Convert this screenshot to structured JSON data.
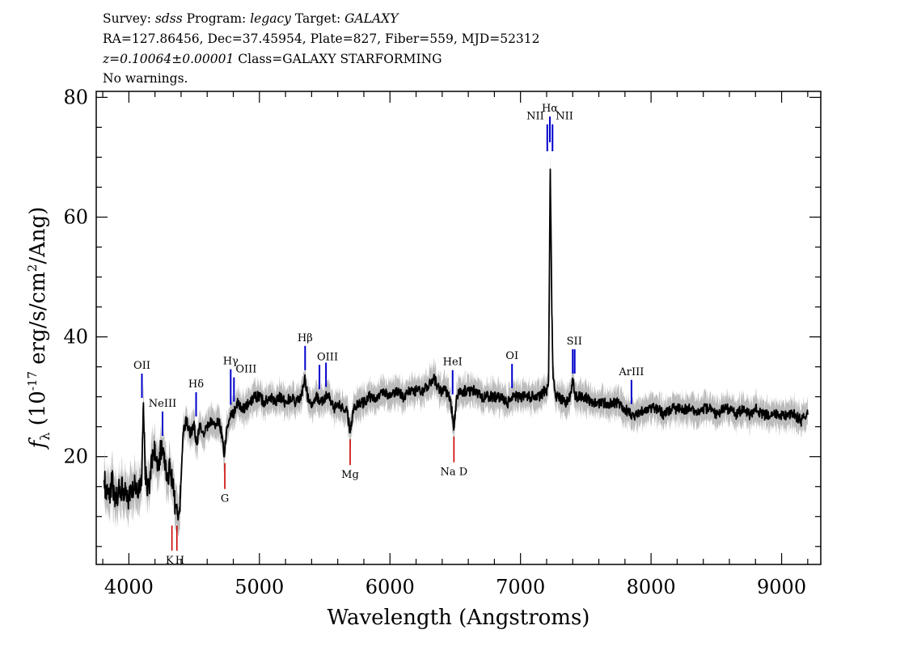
{
  "header": {
    "line1": [
      {
        "t": "Survey: ",
        "i": false
      },
      {
        "t": "sdss",
        "i": true
      },
      {
        "t": " Program: ",
        "i": false
      },
      {
        "t": "legacy",
        "i": true
      },
      {
        "t": " Target: ",
        "i": false
      },
      {
        "t": "GALAXY",
        "i": true
      }
    ],
    "line2": [
      {
        "t": "RA=127.86456, Dec=37.45954, Plate=827, Fiber=559, MJD=52312",
        "i": false
      }
    ],
    "line3": [
      {
        "t": "z=0.10064±0.00001",
        "i": true
      },
      {
        "t": " Class=GALAXY STARFORMING",
        "i": false
      }
    ],
    "line4": [
      {
        "t": "No warnings.",
        "i": false
      }
    ]
  },
  "chart_data": {
    "type": "line",
    "xlabel": "Wavelength (Angstroms)",
    "ylabel": "f_λ (10^-17 erg/s/cm^2/Ang)",
    "xlim": [
      3750,
      9300
    ],
    "ylim": [
      2,
      81
    ],
    "x_ticks": [
      4000,
      5000,
      6000,
      7000,
      8000,
      9000
    ],
    "y_ticks": [
      20,
      40,
      60,
      80
    ],
    "grid": false,
    "series": [
      {
        "color": "#000000",
        "error_band_color": "#bbbbbb",
        "points": [
          [
            3810,
            16
          ],
          [
            3830,
            14
          ],
          [
            3850,
            13
          ],
          [
            3870,
            16
          ],
          [
            3890,
            14
          ],
          [
            3910,
            13
          ],
          [
            3930,
            15
          ],
          [
            3960,
            14
          ],
          [
            3990,
            13
          ],
          [
            4020,
            14
          ],
          [
            4050,
            15
          ],
          [
            4080,
            14
          ],
          [
            4100,
            17
          ],
          [
            4112,
            29
          ],
          [
            4125,
            18
          ],
          [
            4140,
            14
          ],
          [
            4160,
            16
          ],
          [
            4180,
            20
          ],
          [
            4200,
            22
          ],
          [
            4225,
            18
          ],
          [
            4245,
            21
          ],
          [
            4270,
            19
          ],
          [
            4295,
            16
          ],
          [
            4315,
            19
          ],
          [
            4335,
            15
          ],
          [
            4355,
            12
          ],
          [
            4375,
            10
          ],
          [
            4395,
            13
          ],
          [
            4415,
            24
          ],
          [
            4440,
            26
          ],
          [
            4470,
            24
          ],
          [
            4500,
            25
          ],
          [
            4520,
            22
          ],
          [
            4540,
            25
          ],
          [
            4570,
            24
          ],
          [
            4600,
            25
          ],
          [
            4630,
            26
          ],
          [
            4660,
            25
          ],
          [
            4690,
            26
          ],
          [
            4710,
            24
          ],
          [
            4730,
            20
          ],
          [
            4750,
            25
          ],
          [
            4780,
            27
          ],
          [
            4800,
            27
          ],
          [
            4830,
            29
          ],
          [
            4860,
            28
          ],
          [
            4890,
            28
          ],
          [
            4920,
            29
          ],
          [
            4960,
            30
          ],
          [
            5000,
            30
          ],
          [
            5040,
            29
          ],
          [
            5080,
            30
          ],
          [
            5120,
            29
          ],
          [
            5160,
            30
          ],
          [
            5200,
            29
          ],
          [
            5240,
            30
          ],
          [
            5280,
            29
          ],
          [
            5320,
            30
          ],
          [
            5350,
            33
          ],
          [
            5370,
            30
          ],
          [
            5400,
            29
          ],
          [
            5440,
            30
          ],
          [
            5480,
            29
          ],
          [
            5510,
            30
          ],
          [
            5540,
            30
          ],
          [
            5570,
            28
          ],
          [
            5600,
            29
          ],
          [
            5640,
            28
          ],
          [
            5670,
            28
          ],
          [
            5695,
            24
          ],
          [
            5720,
            28
          ],
          [
            5760,
            29
          ],
          [
            5800,
            29
          ],
          [
            5840,
            30
          ],
          [
            5880,
            30
          ],
          [
            5920,
            30
          ],
          [
            5960,
            31
          ],
          [
            6000,
            30
          ],
          [
            6050,
            31
          ],
          [
            6100,
            30
          ],
          [
            6150,
            31
          ],
          [
            6200,
            31
          ],
          [
            6250,
            31
          ],
          [
            6300,
            32
          ],
          [
            6340,
            33
          ],
          [
            6380,
            31
          ],
          [
            6420,
            31
          ],
          [
            6460,
            30
          ],
          [
            6490,
            25
          ],
          [
            6510,
            30
          ],
          [
            6550,
            31
          ],
          [
            6600,
            31
          ],
          [
            6650,
            31
          ],
          [
            6700,
            30
          ],
          [
            6750,
            30
          ],
          [
            6800,
            30
          ],
          [
            6850,
            30
          ],
          [
            6900,
            29
          ],
          [
            6950,
            30
          ],
          [
            7000,
            30
          ],
          [
            7050,
            30
          ],
          [
            7100,
            30
          ],
          [
            7150,
            30
          ],
          [
            7180,
            31
          ],
          [
            7200,
            31
          ],
          [
            7215,
            33
          ],
          [
            7228,
            68
          ],
          [
            7240,
            44
          ],
          [
            7250,
            33
          ],
          [
            7270,
            30
          ],
          [
            7300,
            30
          ],
          [
            7340,
            29
          ],
          [
            7380,
            30
          ],
          [
            7400,
            33
          ],
          [
            7420,
            30
          ],
          [
            7460,
            30
          ],
          [
            7500,
            30
          ],
          [
            7550,
            29
          ],
          [
            7600,
            29
          ],
          [
            7650,
            29
          ],
          [
            7700,
            29
          ],
          [
            7750,
            29
          ],
          [
            7780,
            28
          ],
          [
            7800,
            28
          ],
          [
            7850,
            27
          ],
          [
            7900,
            27
          ],
          [
            7950,
            28
          ],
          [
            8000,
            28
          ],
          [
            8050,
            28
          ],
          [
            8100,
            27
          ],
          [
            8150,
            28
          ],
          [
            8200,
            28
          ],
          [
            8250,
            28
          ],
          [
            8300,
            28
          ],
          [
            8350,
            27
          ],
          [
            8400,
            28
          ],
          [
            8450,
            28
          ],
          [
            8500,
            27
          ],
          [
            8550,
            28
          ],
          [
            8600,
            28
          ],
          [
            8650,
            27
          ],
          [
            8700,
            28
          ],
          [
            8750,
            27
          ],
          [
            8800,
            28
          ],
          [
            8850,
            27
          ],
          [
            8900,
            27
          ],
          [
            8950,
            27
          ],
          [
            9000,
            27
          ],
          [
            9050,
            27
          ],
          [
            9100,
            27
          ],
          [
            9150,
            26
          ],
          [
            9200,
            27
          ]
        ]
      }
    ],
    "emission_lines": [
      {
        "label": "OII",
        "wave": 4100,
        "color": "#0000cc"
      },
      {
        "label": "NeIII",
        "wave": 4258,
        "color": "#0000cc"
      },
      {
        "label": "Hδ",
        "wave": 4515,
        "color": "#0000cc"
      },
      {
        "label": "Hγ",
        "wave": 4780,
        "color": "#0000cc"
      },
      {
        "label": "OIII",
        "wave": 4805,
        "color": "#0000cc"
      },
      {
        "label": "Hβ",
        "wave": 5350,
        "color": "#0000cc"
      },
      {
        "label": "OIII",
        "wave": 5460,
        "color": "#0000cc"
      },
      {
        "label": "OIII",
        "wave": 5510,
        "color": "#0000cc"
      },
      {
        "label": "HeI",
        "wave": 6480,
        "color": "#0000cc"
      },
      {
        "label": "OI",
        "wave": 6935,
        "color": "#0000cc"
      },
      {
        "label": "NII",
        "wave": 7205,
        "color": "#0000cc"
      },
      {
        "label": "Hα",
        "wave": 7225,
        "color": "#0000cc"
      },
      {
        "label": "NII",
        "wave": 7245,
        "color": "#0000cc"
      },
      {
        "label": "SII",
        "wave": 7400,
        "color": "#0000cc"
      },
      {
        "label": "SII",
        "wave": 7415,
        "color": "#0000cc"
      },
      {
        "label": "ArIII",
        "wave": 7850,
        "color": "#0000cc"
      }
    ],
    "absorption_lines": [
      {
        "label": "K",
        "wave": 4330,
        "color": "#cc0000"
      },
      {
        "label": "H",
        "wave": 4368,
        "color": "#cc0000"
      },
      {
        "label": "G",
        "wave": 4735,
        "color": "#cc0000"
      },
      {
        "label": "Mg",
        "wave": 5695,
        "color": "#cc0000"
      },
      {
        "label": "Na D",
        "wave": 6490,
        "color": "#cc0000"
      }
    ]
  }
}
